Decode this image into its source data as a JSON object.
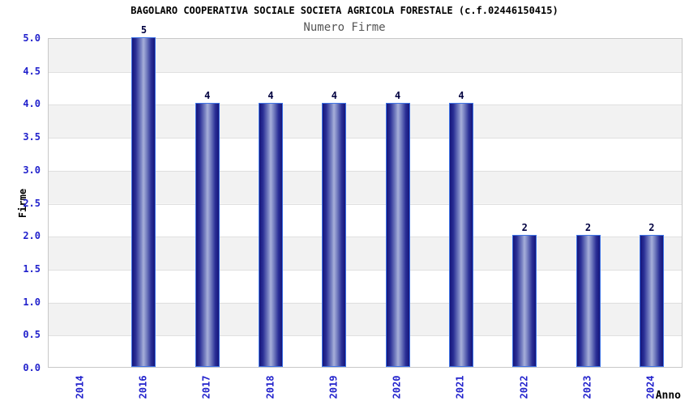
{
  "chart_data": {
    "type": "bar",
    "title": "BAGOLARO COOPERATIVA SOCIALE SOCIETA AGRICOLA FORESTALE (c.f.02446150415)",
    "subtitle": "Numero Firme",
    "xlabel": "Anno",
    "ylabel": "Firme",
    "categories": [
      "2014",
      "2016",
      "2017",
      "2018",
      "2019",
      "2020",
      "2021",
      "2022",
      "2023",
      "2024"
    ],
    "values": [
      null,
      5,
      4,
      4,
      4,
      4,
      4,
      2,
      2,
      2
    ],
    "bar_labels": [
      "",
      "5",
      "4",
      "4",
      "4",
      "4",
      "4",
      "2",
      "2",
      "2"
    ],
    "ylim": [
      0,
      5
    ],
    "ytick_step": 0.5,
    "y_ticks": [
      "5.0",
      "4.5",
      "4.0",
      "3.5",
      "3.0",
      "2.5",
      "2.0",
      "1.5",
      "1.0",
      "0.5",
      "0.0"
    ],
    "grid": "horizontal-bands-alternating",
    "legend": "none"
  },
  "colors": {
    "tick_blue": "#2222cc",
    "title_black": "#000000",
    "subtitle_gray": "#555555",
    "bar_dark": "#15157b",
    "bar_light": "#a7afd9",
    "bar_outline": "#3f74e6",
    "band_gray": "#f2f2f2",
    "grid_line": "#e0e0e0",
    "plot_border": "#c8c8c8",
    "value_label_navy": "#000040"
  }
}
